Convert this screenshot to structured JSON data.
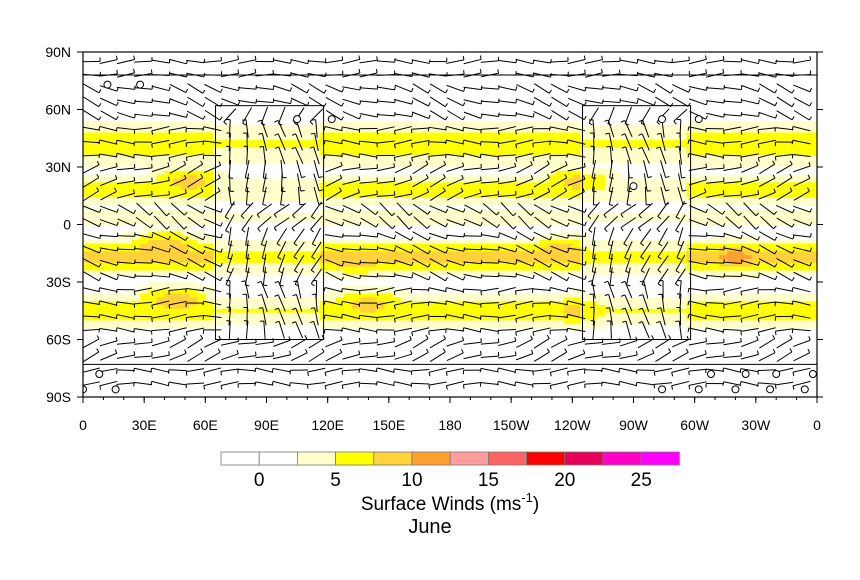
{
  "chart_data": {
    "type": "heatmap",
    "title": "June",
    "colorbar_label": "Surface Winds (ms",
    "colorbar_label_sup": "-1",
    "colorbar_label_end": ")",
    "x_tick_labels": [
      "0",
      "30E",
      "60E",
      "90E",
      "120E",
      "150E",
      "180",
      "150W",
      "120W",
      "90W",
      "60W",
      "30W",
      "0"
    ],
    "y_tick_labels": [
      "90N",
      "60N",
      "30N",
      "0",
      "30S",
      "60S",
      "90S"
    ],
    "longitude_range": [
      0,
      360
    ],
    "latitude_range": [
      -90,
      90
    ],
    "colorbar_ticks": [
      "0",
      "5",
      "10",
      "15",
      "20",
      "25"
    ],
    "colorbar_colors": [
      "#ffffff",
      "#ffffff",
      "#ffffcc",
      "#ffff00",
      "#ffd23c",
      "#ffa030",
      "#ff9c9c",
      "#ff6464",
      "#ff0000",
      "#e6005a",
      "#ff00c8",
      "#ff00ff"
    ],
    "speed_bands": [
      {
        "lat_center": 42,
        "lat_halfwidth": 12,
        "speed": 7
      },
      {
        "lat_center": 18,
        "lat_halfwidth": 8,
        "speed": 6
      },
      {
        "lat_center": 4,
        "lat_halfwidth": 5,
        "speed": 4
      },
      {
        "lat_center": -17,
        "lat_halfwidth": 9,
        "speed": 8
      },
      {
        "lat_center": -45,
        "lat_halfwidth": 9,
        "speed": 7
      }
    ],
    "speed_hotspots": [
      {
        "lon": 40,
        "lat": -12,
        "speed": 10
      },
      {
        "lon": 135,
        "lat": -18,
        "speed": 10
      },
      {
        "lon": 235,
        "lat": -15,
        "speed": 10
      },
      {
        "lon": 320,
        "lat": -17,
        "speed": 11
      },
      {
        "lon": 245,
        "lat": 22,
        "speed": 9
      },
      {
        "lon": 52,
        "lat": 22,
        "speed": 9
      },
      {
        "lon": 140,
        "lat": -42,
        "speed": 9
      },
      {
        "lon": 245,
        "lat": -45,
        "speed": 9
      },
      {
        "lon": 45,
        "lat": -40,
        "speed": 9
      }
    ],
    "boxes": [
      {
        "lon_min": 65,
        "lon_max": 118,
        "lat_min": -60,
        "lat_max": 62
      },
      {
        "lon_min": 245,
        "lon_max": 298,
        "lat_min": -60,
        "lat_max": 62
      }
    ],
    "polar_lines_lat": [
      78,
      -73
    ],
    "wind_field": [
      {
        "lat_max": 90,
        "lat_min": 72,
        "u": -6,
        "v": 0
      },
      {
        "lat_max": 72,
        "lat_min": 55,
        "u": -3,
        "v": 1
      },
      {
        "lat_max": 55,
        "lat_min": 30,
        "u": 7,
        "v": 0
      },
      {
        "lat_max": 30,
        "lat_min": 8,
        "u": -6,
        "v": -2
      },
      {
        "lat_max": 8,
        "lat_min": 0,
        "u": -3,
        "v": 2
      },
      {
        "lat_max": 0,
        "lat_min": -30,
        "u": -7,
        "v": 2
      },
      {
        "lat_max": -30,
        "lat_min": -60,
        "u": 8,
        "v": 0
      },
      {
        "lat_max": -60,
        "lat_min": -72,
        "u": -3,
        "v": -1
      },
      {
        "lat_max": -72,
        "lat_min": -90,
        "u": 4,
        "v": 0
      }
    ],
    "calm_markers": [
      {
        "lon": 12,
        "lat": 73
      },
      {
        "lon": 28,
        "lat": 73
      },
      {
        "lon": 105,
        "lat": 55
      },
      {
        "lon": 122,
        "lat": 55
      },
      {
        "lon": 284,
        "lat": 55
      },
      {
        "lon": 302,
        "lat": 55
      },
      {
        "lon": 270,
        "lat": 20
      },
      {
        "lon": 0,
        "lat": -86
      },
      {
        "lon": 8,
        "lat": -78
      },
      {
        "lon": 16,
        "lat": -86
      },
      {
        "lon": 284,
        "lat": -86
      },
      {
        "lon": 302,
        "lat": -86
      },
      {
        "lon": 308,
        "lat": -78
      },
      {
        "lon": 320,
        "lat": -86
      },
      {
        "lon": 325,
        "lat": -78
      },
      {
        "lon": 337,
        "lat": -86
      },
      {
        "lon": 340,
        "lat": -78
      },
      {
        "lon": 354,
        "lat": -86
      },
      {
        "lon": 358,
        "lat": -78
      }
    ]
  }
}
